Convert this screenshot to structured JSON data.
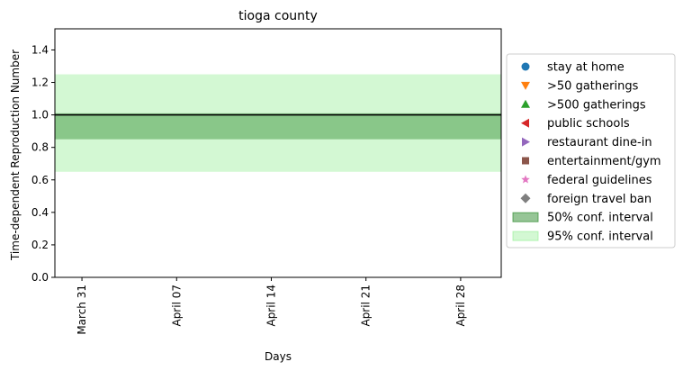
{
  "chart_data": {
    "type": "line",
    "title": "tioga county",
    "xlabel": "Days",
    "ylabel": "Time-dependent Reproduction Number",
    "x_ticks": [
      "March 31",
      "April 07",
      "April 14",
      "April 21",
      "April 28"
    ],
    "x_tick_days": [
      0,
      7,
      14,
      21,
      28
    ],
    "xlim": [
      -2,
      31
    ],
    "ylim": [
      0,
      1.53
    ],
    "y_ticks": [
      0.0,
      0.2,
      0.4,
      0.6,
      0.8,
      1.0,
      1.2,
      1.4
    ],
    "y_tick_labels": [
      "0.0",
      "0.2",
      "0.4",
      "0.6",
      "0.8",
      "1.0",
      "1.2",
      "1.4"
    ],
    "series": [
      {
        "name": "",
        "x": [
          -2,
          31
        ],
        "y": [
          1.0,
          1.0
        ],
        "color": "#000000"
      }
    ],
    "bands": [
      {
        "name": "95% conf. interval",
        "low": 0.65,
        "high": 1.25,
        "color": "#90ee90",
        "opacity": 0.4
      },
      {
        "name": "50% conf. interval",
        "low": 0.85,
        "high": 1.01,
        "color": "#2e8b2e",
        "opacity": 0.45
      }
    ],
    "grid": false,
    "legend_placement": "right-outside",
    "legend": [
      {
        "label": "stay at home",
        "marker": "circle",
        "color": "#1f77b4"
      },
      {
        "label": ">50 gatherings",
        "marker": "triangle-down",
        "color": "#ff7f0e"
      },
      {
        "label": ">500 gatherings",
        "marker": "triangle-up",
        "color": "#2ca02c"
      },
      {
        "label": "public schools",
        "marker": "triangle-left",
        "color": "#d62728"
      },
      {
        "label": "restaurant dine-in",
        "marker": "triangle-right",
        "color": "#9467bd"
      },
      {
        "label": "entertainment/gym",
        "marker": "square",
        "color": "#8c564b"
      },
      {
        "label": "federal guidelines",
        "marker": "star",
        "color": "#e377c2"
      },
      {
        "label": "foreign travel ban",
        "marker": "diamond",
        "color": "#7f7f7f"
      },
      {
        "label": "50% conf. interval",
        "marker": "patch",
        "color": "#2e8b2e",
        "opacity": 0.5
      },
      {
        "label": "95% conf. interval",
        "marker": "patch",
        "color": "#90ee90",
        "opacity": 0.4
      }
    ]
  }
}
